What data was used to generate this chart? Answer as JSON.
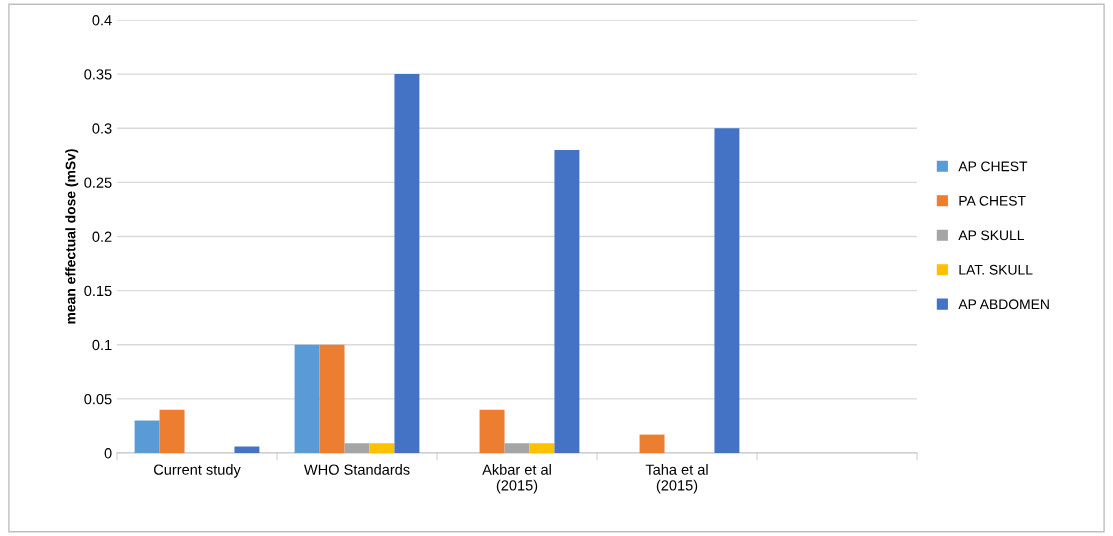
{
  "chart_data": {
    "type": "bar",
    "ylabel": "mean effectual dose (mSv)",
    "categories": [
      "Current study",
      "WHO Standards",
      "Akbar et al\n(2015)",
      "Taha et al\n(2015)",
      null
    ],
    "series": [
      {
        "name": "AP CHEST",
        "color": "#5b9bd5",
        "values": [
          0.03,
          0.1,
          null,
          null,
          null
        ]
      },
      {
        "name": "PA CHEST",
        "color": "#ed7d31",
        "values": [
          0.04,
          0.1,
          0.04,
          0.017,
          null
        ]
      },
      {
        "name": "AP SKULL",
        "color": "#a5a5a5",
        "values": [
          null,
          0.009,
          0.009,
          null,
          null
        ]
      },
      {
        "name": "LAT. SKULL",
        "color": "#ffc000",
        "values": [
          null,
          0.009,
          0.009,
          null,
          null
        ]
      },
      {
        "name": "AP ABDOMEN",
        "color": "#4472c4",
        "values": [
          0.006,
          0.35,
          0.28,
          0.3,
          null
        ]
      }
    ],
    "ylim": [
      0,
      0.4
    ],
    "yticks": [
      0,
      0.05,
      0.1,
      0.15,
      0.2,
      0.25,
      0.3,
      0.35,
      0.4
    ],
    "grid": "y",
    "legend": "right"
  }
}
